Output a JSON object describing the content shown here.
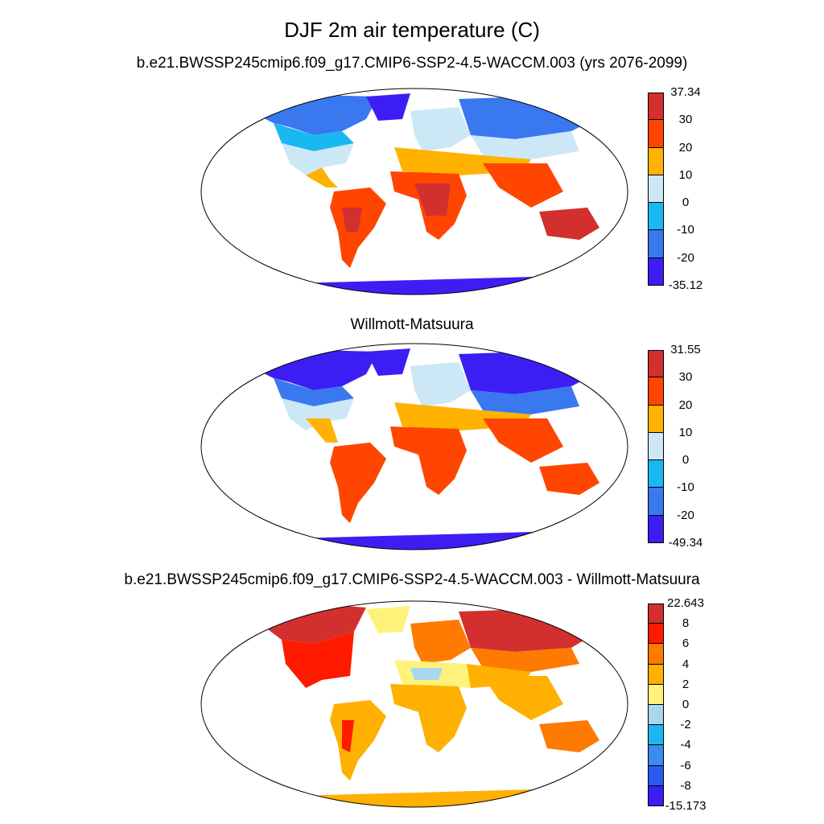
{
  "title": "DJF 2m air temperature (C)",
  "panels": [
    {
      "title": "b.e21.BWSSP245cmip6.f09_g17.CMIP6-SSP2-4.5-WACCM.003 (yrs 2076-2099)",
      "colorbar": {
        "labels": [
          "37.34",
          "30",
          "20",
          "10",
          "0",
          "-10",
          "-20",
          "-35.12"
        ],
        "colors": [
          "#d32f2f",
          "#ff4500",
          "#ffb300",
          "#cce8f7",
          "#1ab8f0",
          "#3a78f0",
          "#3c1ef5"
        ]
      }
    },
    {
      "title": "Willmott-Matsuura",
      "colorbar": {
        "labels": [
          "31.55",
          "30",
          "20",
          "10",
          "0",
          "-10",
          "-20",
          "-49.34"
        ],
        "colors": [
          "#d32f2f",
          "#ff4500",
          "#ffb300",
          "#cce8f7",
          "#1ab8f0",
          "#3a78f0",
          "#3c1ef5"
        ]
      }
    },
    {
      "title": "b.e21.BWSSP245cmip6.f09_g17.CMIP6-SSP2-4.5-WACCM.003 - Willmott-Matsuura",
      "colorbar": {
        "labels": [
          "22.643",
          "8",
          "6",
          "4",
          "2",
          "0",
          "-2",
          "-4",
          "-6",
          "-8",
          "-15.173"
        ],
        "colors": [
          "#d32f2f",
          "#ff1a00",
          "#ff7a00",
          "#ffb000",
          "#fff27a",
          "#a8d8f0",
          "#1ab8f0",
          "#3a8cf0",
          "#2a5af0",
          "#3c1ef5"
        ]
      }
    }
  ]
}
